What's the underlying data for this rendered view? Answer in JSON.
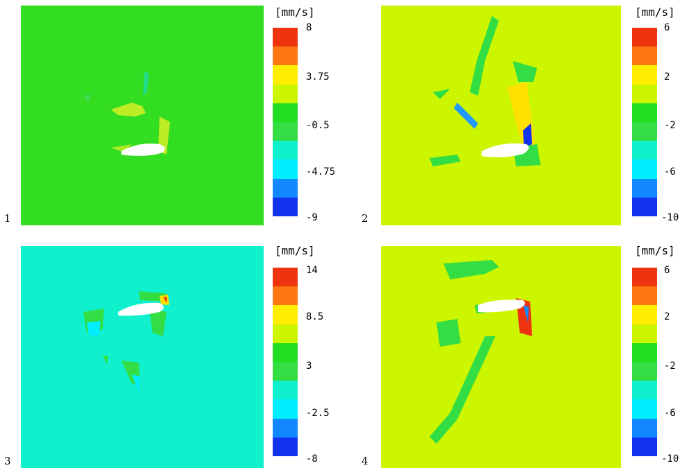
{
  "panels": [
    {
      "label": "1",
      "unit": "[mm/s]",
      "ticks": [
        "8",
        "3.75",
        "-0.5",
        "-4.75",
        "-9"
      ],
      "background": "#33dd22"
    },
    {
      "label": "2",
      "unit": "[mm/s]",
      "ticks": [
        "6",
        "2",
        "-2",
        "-6",
        "-10"
      ],
      "background": "#ccf500"
    },
    {
      "label": "3",
      "unit": "[mm/s]",
      "ticks": [
        "14",
        "8.5",
        "3",
        "-2.5",
        "-8"
      ],
      "background": "#11f0cc"
    },
    {
      "label": "4",
      "unit": "[mm/s]",
      "ticks": [
        "6",
        "2",
        "-2",
        "-6",
        "-10"
      ],
      "background": "#ccf500"
    }
  ],
  "colorbar_colors": [
    "#ee3311",
    "#ff7711",
    "#ffee00",
    "#ccf500",
    "#22dd22",
    "#33dd44",
    "#11f0cc",
    "#00eeff",
    "#1188ff",
    "#1133ee"
  ]
}
